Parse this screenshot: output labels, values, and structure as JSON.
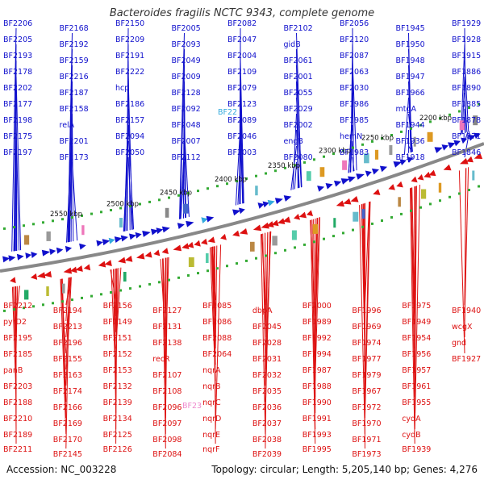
{
  "title": "Bacteroides fragilis NCTC 9343, complete genome",
  "footer": {
    "accession": "Accession: NC_003228",
    "info": "Topology: circular; Length: 5,205,140 bp; Genes: 4,276"
  },
  "colors": {
    "forward": "#1010cc",
    "reverse": "#dd1111",
    "highlight": "#33aadd",
    "highlight_pink": "#ee88cc",
    "backbone": "#888888",
    "tick": "#33aa33"
  },
  "ruler": [
    "2200 kbp",
    "2250 kbp",
    "2300 kbp",
    "2350 kbp",
    "2400 kbp",
    "2450 kbp",
    "2500 kbp",
    "2550 kbp"
  ],
  "top_labels": [
    "BF2206",
    "BF2205",
    "BF2193",
    "BF2178",
    "BF2202",
    "BF2177",
    "BF2198",
    "BF2175",
    "BF2197",
    "BF2168",
    "BF2192",
    "BF2159",
    "BF2216",
    "BF2187",
    "BF2158",
    "relA",
    "BF2201",
    "BF2173",
    "BF2150",
    "BF2209",
    "BF2191",
    "BF2222",
    "hcp",
    "BF2186",
    "BF2157",
    "BF2094",
    "BF2050",
    "BF2005",
    "BF2093",
    "BF2049",
    "BF2009",
    "BF2128",
    "BF2092",
    "BF2048",
    "BF2007",
    "BF2112",
    "BF2082",
    "BF2047",
    "BF2004",
    "BF2109",
    "BF2079",
    "BF2123",
    "BF2089",
    "BF2046",
    "BF2003",
    "BF2102",
    "gidB",
    "BF2061",
    "BF2001",
    "BF2055",
    "BF2029",
    "BF2002",
    "engB",
    "BF2080",
    "BF2056",
    "BF2120",
    "BF2087",
    "BF2063",
    "BF2030",
    "BF1986",
    "BF1985",
    "hemN",
    "BF1983",
    "BF1945",
    "BF1950",
    "BF1948",
    "BF1947",
    "BF1966",
    "mtgA",
    "BF1944",
    "BF1936",
    "BF1918",
    "BF1929",
    "BF1928",
    "BF1915",
    "BF1886",
    "BF1890",
    "BF1885",
    "BF1878",
    "BF1871",
    "BF1846"
  ],
  "bottom_labels": [
    "BF2212",
    "pyrD2",
    "BF2195",
    "BF2185",
    "panB",
    "BF2203",
    "BF2188",
    "BF2210",
    "BF2189",
    "BF2211",
    "BF2194",
    "BF2213",
    "BF2196",
    "BF2155",
    "BF2163",
    "BF2174",
    "BF2166",
    "BF2169",
    "BF2170",
    "BF2145",
    "BF2156",
    "BF2149",
    "BF2151",
    "BF2152",
    "BF2153",
    "BF2132",
    "BF2139",
    "BF2134",
    "BF2125",
    "BF2126",
    "BF2127",
    "BF2131",
    "BF2138",
    "recR",
    "BF2107",
    "BF2108",
    "BF2096",
    "BF2097",
    "BF2098",
    "BF2084",
    "BF2085",
    "BF2086",
    "BF2088",
    "BF2064",
    "nqrA",
    "nqrB",
    "nqrC",
    "nqrD",
    "nqrE",
    "nqrF",
    "dbpA",
    "BF2045",
    "BF2028",
    "BF2031",
    "BF2032",
    "BF2035",
    "BF2036",
    "BF2037",
    "BF2038",
    "BF2039",
    "BF2000",
    "BF1989",
    "BF1992",
    "BF1994",
    "BF1987",
    "BF1988",
    "BF1990",
    "BF1991",
    "BF1993",
    "BF1995",
    "BF1996",
    "BF1969",
    "BF1974",
    "BF1977",
    "BF1979",
    "BF1967",
    "BF1972",
    "BF1970",
    "BF1971",
    "BF1973",
    "BF1975",
    "BF1949",
    "BF1954",
    "BF1956",
    "BF1957",
    "BF1961",
    "BF1955",
    "cydA",
    "cydB",
    "BF1939",
    "BF1940",
    "wcgX",
    "gnd",
    "BF1927"
  ],
  "special": {
    "top": "BF22",
    "bottom": "BF23"
  }
}
